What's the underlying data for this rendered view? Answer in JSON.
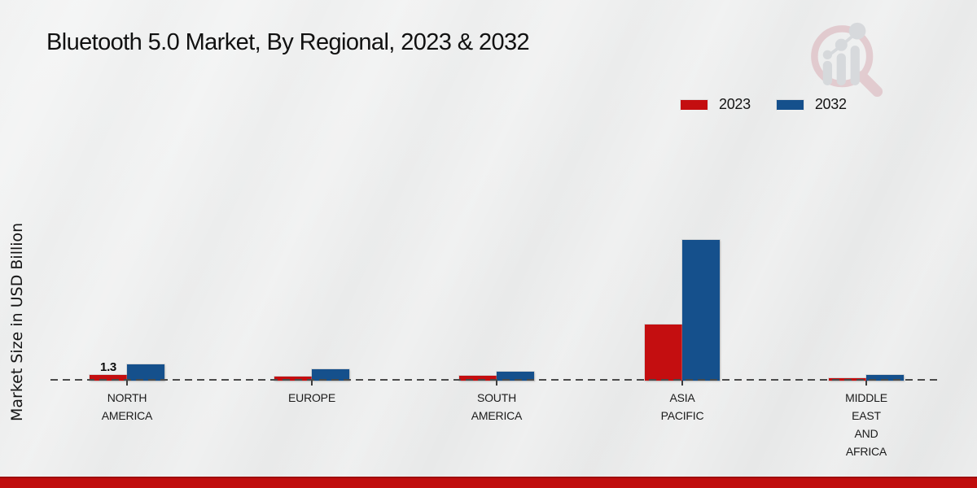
{
  "page": {
    "title": "Bluetooth 5.0 Market, By Regional, 2023 & 2032",
    "y_axis_label": "Market Size in USD Billion"
  },
  "colors": {
    "series_2023": "#c40e10",
    "series_2032": "#15508c",
    "baseline": "#4b4b4b",
    "footer_bar": "#c00d0d",
    "background": "#eaebeb",
    "text": "#111111",
    "logo_pink": "#d9afb6",
    "logo_gray": "#c4c8cd"
  },
  "legend": {
    "items": [
      {
        "label": "2023",
        "color": "#c40e10"
      },
      {
        "label": "2032",
        "color": "#15508c"
      }
    ]
  },
  "chart_data": {
    "type": "bar",
    "title": "Bluetooth 5.0 Market, By Regional, 2023 & 2032",
    "ylabel": "Market Size in USD Billion",
    "categories": [
      "NORTH\nAMERICA",
      "EUROPE",
      "SOUTH\nAMERICA",
      "ASIA\nPACIFIC",
      "MIDDLE\nEAST\nAND\nAFRICA"
    ],
    "series": [
      {
        "name": "2023",
        "color": "#c40e10",
        "values": [
          1.3,
          0.9,
          1.0,
          12.0,
          0.55
        ]
      },
      {
        "name": "2032",
        "color": "#15508c",
        "values": [
          3.5,
          2.4,
          1.9,
          30.0,
          1.2
        ]
      }
    ],
    "value_labels": [
      {
        "category_index": 0,
        "series_index": 0,
        "text": "1.3"
      }
    ],
    "ylim": [
      0,
      32
    ],
    "grid": false,
    "y_ticks_visible": false,
    "baseline_style": "dashed",
    "legend_position": "top-right"
  }
}
